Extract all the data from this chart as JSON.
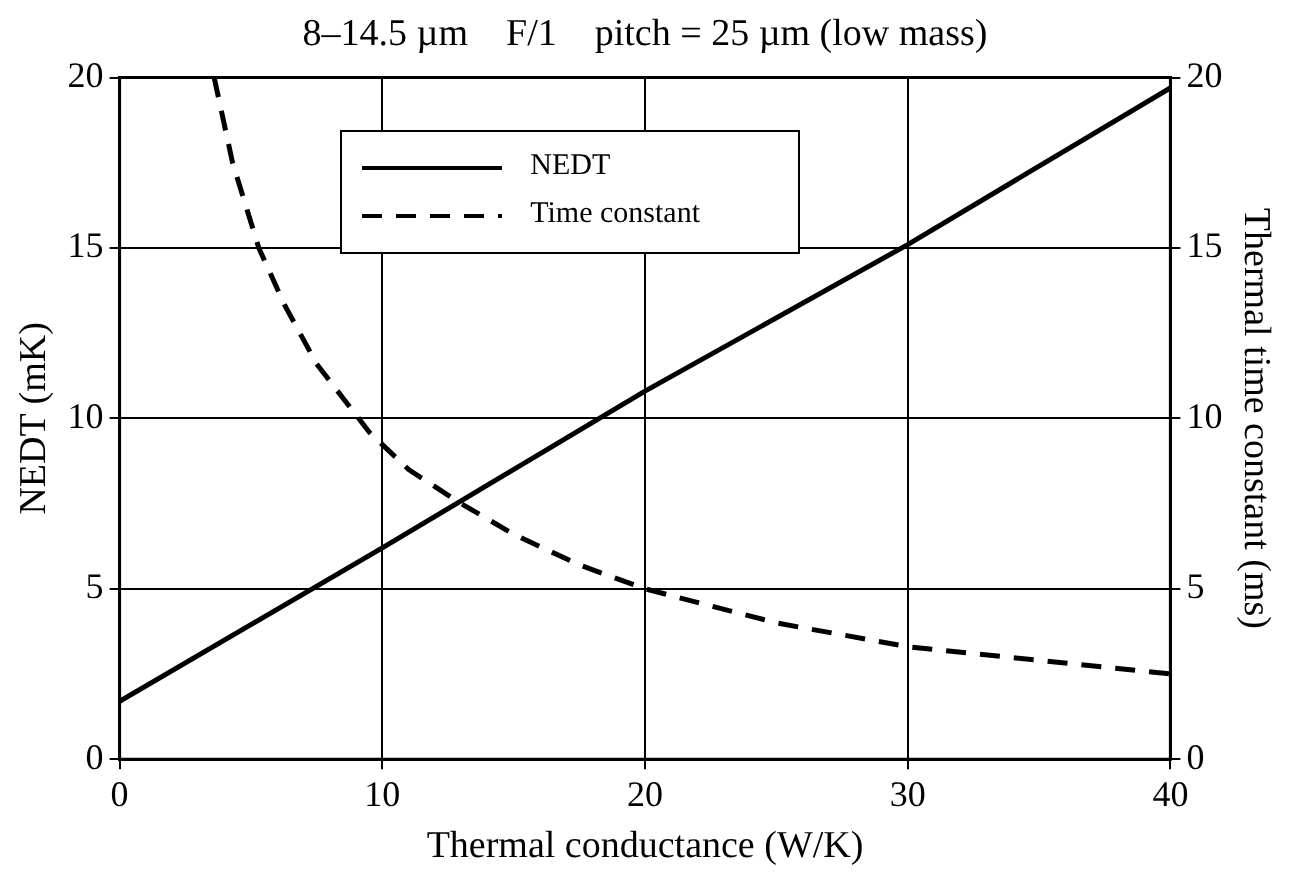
{
  "chart_data": {
    "type": "line",
    "title": "8–14.5 µm    F/1    pitch = 25 µm (low mass)",
    "xlabel": "Thermal conductance (W/K)",
    "ylabel": "NEDT (mK)",
    "y2label": "Thermal time constant (ms)",
    "xlim": [
      0,
      40
    ],
    "xticks": [
      0,
      10,
      20,
      30,
      40
    ],
    "ylim": [
      0,
      20
    ],
    "yticks": [
      0,
      5,
      10,
      15,
      20
    ],
    "y2lim": [
      0,
      20
    ],
    "y2ticks": [
      0,
      5,
      10,
      15,
      20
    ],
    "grid": true,
    "legend": "top",
    "marker": "none",
    "series": [
      {
        "name": "NEDT",
        "color": "#000000",
        "line_style": "solid",
        "x": [
          0,
          10,
          20,
          30,
          40
        ],
        "values": [
          1.7,
          6.2,
          10.8,
          15.1,
          19.7
        ]
      },
      {
        "name": "Time constant",
        "color": "#000000",
        "line_style": "dashed",
        "axis": "y2",
        "x": [
          3.6,
          4.3,
          5.3,
          6.3,
          7.5,
          8.5,
          9.5,
          11,
          13,
          15,
          17.5,
          20,
          25,
          30,
          35,
          40
        ],
        "values": [
          20,
          17.5,
          15,
          13.3,
          11.6,
          10.6,
          9.6,
          8.5,
          7.5,
          6.6,
          5.7,
          5,
          4,
          3.3,
          2.9,
          2.5
        ]
      }
    ]
  }
}
